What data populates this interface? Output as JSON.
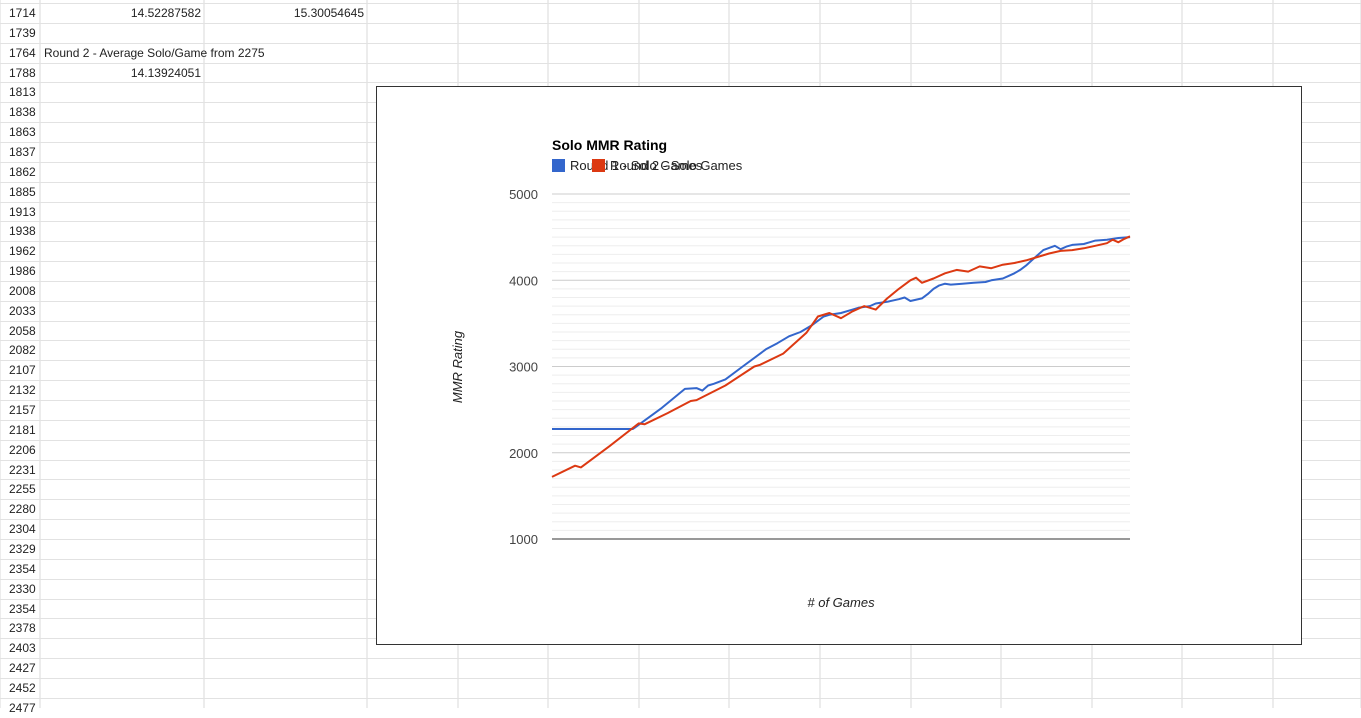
{
  "sheet": {
    "rows": [
      {
        "a": "1714",
        "b": "14.52287582",
        "c": "15.30054645"
      },
      {
        "a": "1739"
      },
      {
        "a": "1764",
        "text": "Round 2 - Average Solo/Game from 2275"
      },
      {
        "a": "1788",
        "b": "14.13924051"
      },
      {
        "a": "1813"
      },
      {
        "a": "1838"
      },
      {
        "a": "1863"
      },
      {
        "a": "1837"
      },
      {
        "a": "1862"
      },
      {
        "a": "1885"
      },
      {
        "a": "1913"
      },
      {
        "a": "1938"
      },
      {
        "a": "1962"
      },
      {
        "a": "1986"
      },
      {
        "a": "2008"
      },
      {
        "a": "2033"
      },
      {
        "a": "2058"
      },
      {
        "a": "2082"
      },
      {
        "a": "2107"
      },
      {
        "a": "2132"
      },
      {
        "a": "2157"
      },
      {
        "a": "2181"
      },
      {
        "a": "2206"
      },
      {
        "a": "2231"
      },
      {
        "a": "2255"
      },
      {
        "a": "2280"
      },
      {
        "a": "2304"
      },
      {
        "a": "2329"
      },
      {
        "a": "2354"
      },
      {
        "a": "2330"
      },
      {
        "a": "2354"
      },
      {
        "a": "2378"
      },
      {
        "a": "2403"
      },
      {
        "a": "2427"
      },
      {
        "a": "2452"
      },
      {
        "a": "2477"
      }
    ]
  },
  "chart_data": {
    "type": "line",
    "title": "Solo MMR Rating",
    "xlabel": "# of Games",
    "ylabel": "MMR Rating",
    "ylim": [
      1000,
      5000
    ],
    "yticks": [
      1000,
      2000,
      3000,
      4000,
      5000
    ],
    "ytick_labels": [
      "1000",
      "2000",
      "3000",
      "4000",
      "5000"
    ],
    "xlim": [
      0,
      100
    ],
    "grid": true,
    "legend_position": "top",
    "legend_labels": [
      "Round 1 - Solo Games",
      "Round 2 - Solo Games"
    ],
    "series": [
      {
        "name": "Round 1 - Solo Games",
        "color": "#3366cc",
        "x": [
          0,
          14,
          19,
          23,
          25,
          26,
          27,
          28,
          30,
          33,
          37,
          39,
          41,
          43,
          45,
          47,
          48,
          50,
          52,
          53,
          55,
          56,
          58,
          60,
          61,
          62,
          64,
          65,
          66,
          67,
          68,
          69,
          71,
          73,
          75,
          76,
          78,
          79,
          80,
          81,
          82,
          83,
          84,
          85,
          87,
          88,
          89,
          90,
          92,
          93,
          94,
          96,
          98,
          100
        ],
        "y": [
          2275,
          2275,
          2520,
          2740,
          2750,
          2720,
          2780,
          2800,
          2850,
          3000,
          3200,
          3270,
          3350,
          3400,
          3480,
          3580,
          3600,
          3620,
          3660,
          3680,
          3700,
          3730,
          3750,
          3780,
          3800,
          3760,
          3790,
          3840,
          3900,
          3940,
          3960,
          3950,
          3960,
          3970,
          3980,
          4000,
          4020,
          4050,
          4080,
          4120,
          4170,
          4230,
          4290,
          4350,
          4400,
          4360,
          4390,
          4410,
          4420,
          4440,
          4460,
          4470,
          4490,
          4500
        ]
      },
      {
        "name": "Round 2 - Solo Games",
        "color": "#dc3912",
        "x": [
          0,
          4,
          5,
          10,
          15,
          16,
          20,
          24,
          25,
          30,
          35,
          36,
          40,
          44,
          46,
          48,
          50,
          52,
          54,
          56,
          58,
          60,
          62,
          63,
          64,
          66,
          68,
          70,
          72,
          74,
          76,
          78,
          80,
          82,
          84,
          86,
          88,
          90,
          92,
          94,
          96,
          97,
          98,
          99,
          100
        ],
        "y": [
          1720,
          1850,
          1830,
          2080,
          2340,
          2330,
          2460,
          2600,
          2610,
          2780,
          3000,
          3020,
          3150,
          3390,
          3580,
          3620,
          3560,
          3640,
          3700,
          3660,
          3790,
          3900,
          4000,
          4030,
          3970,
          4020,
          4080,
          4120,
          4100,
          4160,
          4140,
          4180,
          4200,
          4230,
          4270,
          4310,
          4340,
          4350,
          4370,
          4400,
          4430,
          4470,
          4440,
          4480,
          4510
        ]
      }
    ]
  }
}
